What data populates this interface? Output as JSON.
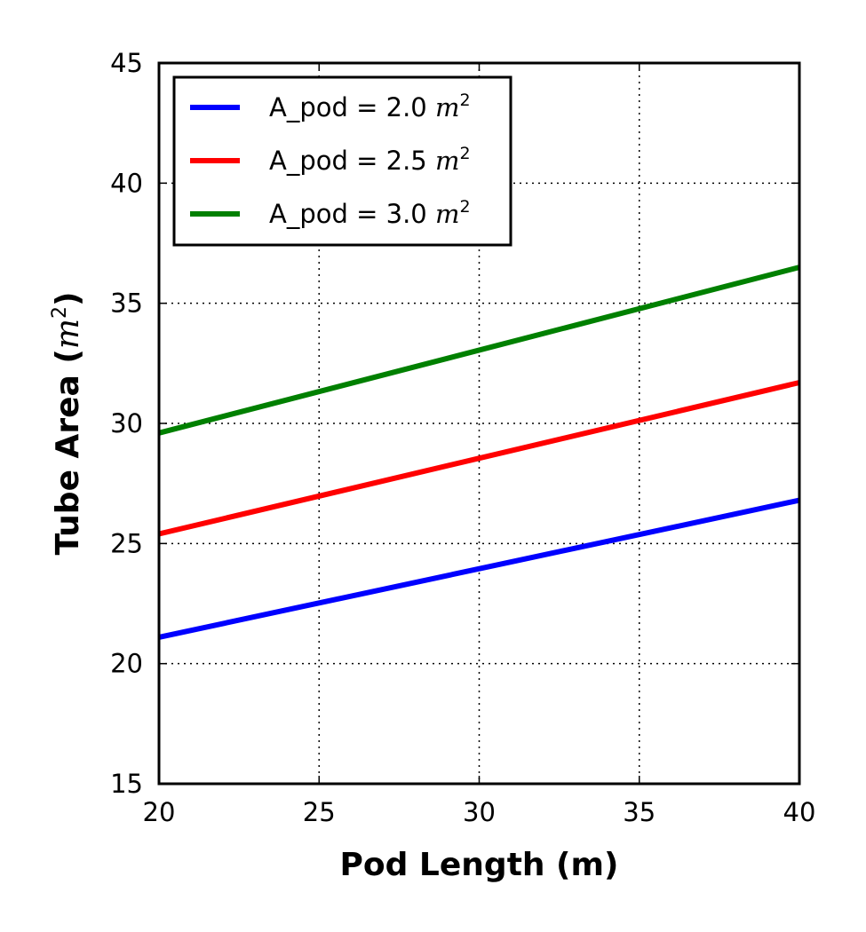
{
  "chart_data": {
    "type": "line",
    "title": "",
    "xlabel": "Pod Length (m)",
    "ylabel": {
      "text": "Tube Area (",
      "unit_base": "m",
      "unit_exp": "2",
      "close": ")"
    },
    "xlim": [
      20,
      40
    ],
    "ylim": [
      15,
      45
    ],
    "xticks": [
      "20",
      "25",
      "30",
      "35",
      "40"
    ],
    "yticks": [
      "15",
      "20",
      "25",
      "30",
      "35",
      "40",
      "45"
    ],
    "grid": true,
    "legend_position": "upper-left",
    "series": [
      {
        "name": "A_pod = 2.0 ",
        "unit_base": "m",
        "unit_exp": "2",
        "color": "#0000ff",
        "x": [
          20,
          40
        ],
        "y": [
          21.1,
          26.8
        ]
      },
      {
        "name": "A_pod = 2.5 ",
        "unit_base": "m",
        "unit_exp": "2",
        "color": "#ff0000",
        "x": [
          20,
          40
        ],
        "y": [
          25.4,
          31.7
        ]
      },
      {
        "name": "A_pod = 3.0 ",
        "unit_base": "m",
        "unit_exp": "2",
        "color": "#008000",
        "x": [
          20,
          40
        ],
        "y": [
          29.6,
          36.5
        ]
      }
    ]
  }
}
